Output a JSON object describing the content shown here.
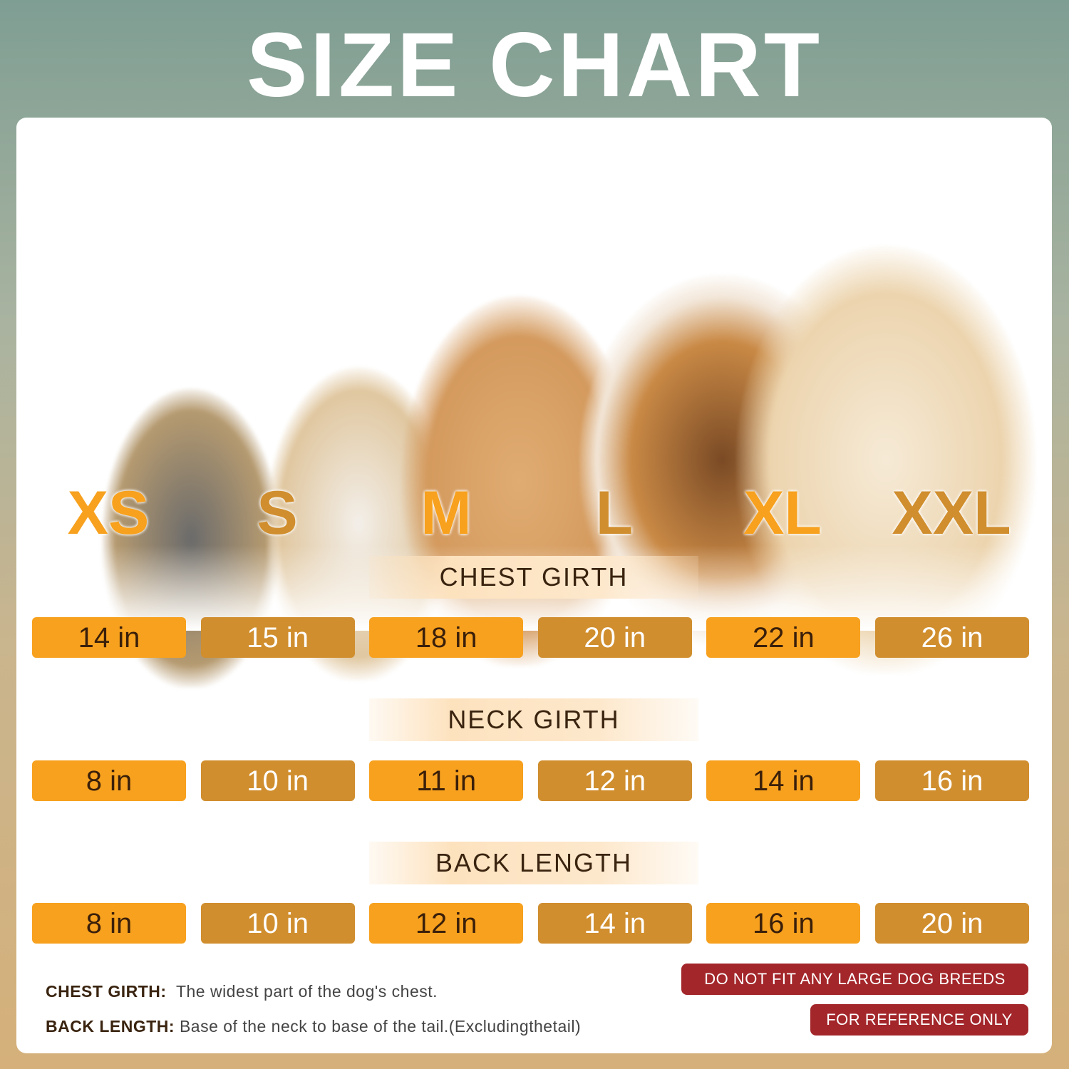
{
  "title": "SIZE CHART",
  "colors": {
    "orange": "#f7a11e",
    "brown": "#d08e2e",
    "badge": "#a3262a"
  },
  "sizes": [
    "XS",
    "S",
    "M",
    "L",
    "XL",
    "XXL"
  ],
  "sections": [
    {
      "label": "CHEST GIRTH",
      "values": [
        "14 in",
        "15 in",
        "18 in",
        "20 in",
        "22 in",
        "26 in"
      ]
    },
    {
      "label": "NECK GIRTH",
      "values": [
        "8 in",
        "10 in",
        "11 in",
        "12 in",
        "14 in",
        "16 in"
      ]
    },
    {
      "label": "BACK LENGTH",
      "values": [
        "8 in",
        "10 in",
        "12 in",
        "14 in",
        "16 in",
        "20 in"
      ]
    }
  ],
  "notes": [
    {
      "term": "CHEST GIRTH:",
      "text": "The widest part of the dog's chest."
    },
    {
      "term": "BACK LENGTH:",
      "text": "Base of the neck to base of the tail.(Excludingthetail)"
    }
  ],
  "badges": [
    "DO NOT FIT ANY LARGE DOG BREEDS",
    "FOR REFERENCE ONLY"
  ]
}
